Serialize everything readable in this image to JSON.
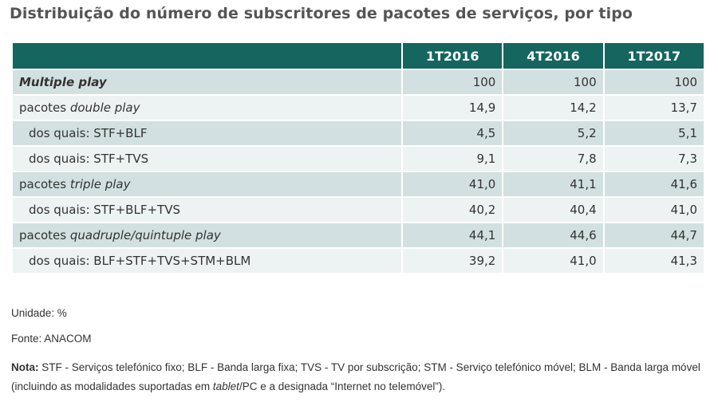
{
  "title": "Distribuição do número de subscritores de pacotes de serviços, por tipo",
  "columns": [
    "1T2016",
    "4T2016",
    "1T2017"
  ],
  "rows": [
    {
      "pre": "",
      "it": "Multiple play",
      "post": "",
      "values": [
        "100",
        "100",
        "100"
      ]
    },
    {
      "pre": "pacotes ",
      "it": "double play",
      "post": "",
      "values": [
        "14,9",
        "14,2",
        "13,7"
      ]
    },
    {
      "pre": "dos quais: STF+BLF",
      "it": "",
      "post": "",
      "values": [
        "4,5",
        "5,2",
        "5,1"
      ]
    },
    {
      "pre": "dos quais: STF+TVS",
      "it": "",
      "post": "",
      "values": [
        "9,1",
        "7,8",
        "7,3"
      ]
    },
    {
      "pre": "pacotes ",
      "it": "triple play",
      "post": "",
      "values": [
        "41,0",
        "41,1",
        "41,6"
      ]
    },
    {
      "pre": "dos quais: STF+BLF+TVS",
      "it": "",
      "post": "",
      "values": [
        "40,2",
        "40,4",
        "41,0"
      ]
    },
    {
      "pre": "pacotes ",
      "it": "quadruple/quintuple play",
      "post": "",
      "values": [
        "44,1",
        "44,6",
        "44,7"
      ]
    },
    {
      "pre": "dos quais: BLF+STF+TVS+STM+BLM",
      "it": "",
      "post": "",
      "values": [
        "39,2",
        "41,0",
        "41,3"
      ]
    }
  ],
  "unit": "Unidade: %",
  "source": "Fonte: ANACOM",
  "note": {
    "label": "Nota:",
    "text1": " STF - Serviços telefónico fixo; BLF - Banda larga fixa; TVS - TV por subscrição; STM - Serviço telefónico móvel; BLM - Banda larga móvel (incluindo as modalidades suportadas em ",
    "italic": "tablet",
    "text2": "/PC e a designada “Internet no telemóvel”)."
  }
}
